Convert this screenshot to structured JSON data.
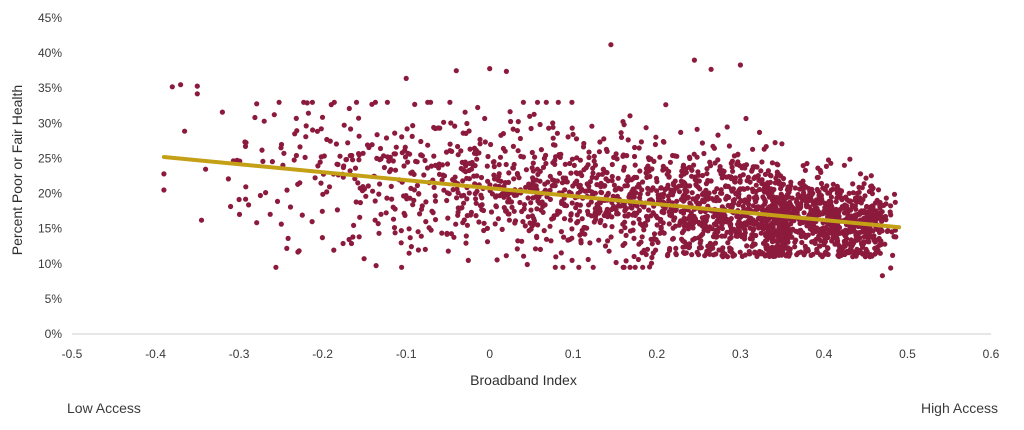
{
  "chart_data": {
    "type": "scatter",
    "title": "",
    "xlabel": "Broadband Index",
    "ylabel": "Percent Poor or Fair Health",
    "xlim": [
      -0.5,
      0.6
    ],
    "ylim": [
      0,
      45
    ],
    "x_ticks": [
      "-0.5",
      "-0.4",
      "-0.3",
      "-0.2",
      "-0.1",
      "0",
      "0.1",
      "0.2",
      "0.3",
      "0.4",
      "0.5",
      "0.6"
    ],
    "x_tick_values": [
      -0.5,
      -0.4,
      -0.3,
      -0.2,
      -0.1,
      0,
      0.1,
      0.2,
      0.3,
      0.4,
      0.5,
      0.6
    ],
    "y_ticks": [
      "0%",
      "5%",
      "10%",
      "15%",
      "20%",
      "25%",
      "30%",
      "35%",
      "40%",
      "45%"
    ],
    "y_tick_values": [
      0,
      5,
      10,
      15,
      20,
      25,
      30,
      35,
      40,
      45
    ],
    "grid": false,
    "legend": "none",
    "point_color": "#8b1a3c",
    "trend_color": "#c4a017",
    "trendline": {
      "x": [
        -0.39,
        0.49
      ],
      "y": [
        25.2,
        15.2
      ]
    },
    "highlighted_points": [
      {
        "x": -0.38,
        "y": 35.2
      },
      {
        "x": -0.37,
        "y": 35.5
      },
      {
        "x": -0.35,
        "y": 35.3
      },
      {
        "x": -0.35,
        "y": 34.2
      },
      {
        "x": -0.32,
        "y": 31.6
      },
      {
        "x": -0.27,
        "y": 30.3
      },
      {
        "x": -0.1,
        "y": 36.4
      },
      {
        "x": -0.04,
        "y": 37.5
      },
      {
        "x": 0,
        "y": 37.8
      },
      {
        "x": 0.02,
        "y": 37.4
      },
      {
        "x": 0.145,
        "y": 41.2
      },
      {
        "x": 0.245,
        "y": 39.0
      },
      {
        "x": 0.3,
        "y": 38.3
      },
      {
        "x": 0.265,
        "y": 37.7
      },
      {
        "x": -0.39,
        "y": 22.8
      },
      {
        "x": -0.39,
        "y": 20.5
      },
      {
        "x": -0.345,
        "y": 16.2
      },
      {
        "x": 0.045,
        "y": 9.9
      },
      {
        "x": 0.47,
        "y": 8.3
      },
      {
        "x": 0.48,
        "y": 9.4
      }
    ],
    "generated_cloud": {
      "count": 2400,
      "x_range": [
        -0.39,
        0.49
      ],
      "density": "increasing toward high broadband index",
      "spread_y": 4.5
    }
  },
  "annotations": {
    "low": "Low Access",
    "high": "High Access"
  }
}
